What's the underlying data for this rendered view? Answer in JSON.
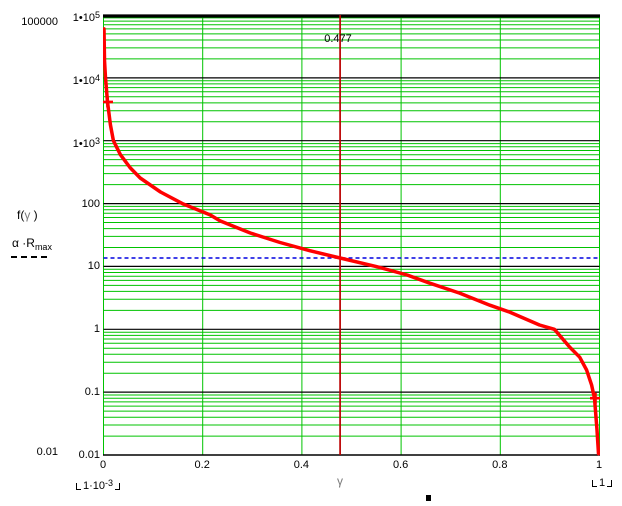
{
  "chart_data": {
    "type": "line",
    "title": "",
    "x_axis": {
      "label": "γ",
      "min": 0,
      "max": 1,
      "tick_values": [
        0,
        0.2,
        0.4,
        0.6,
        0.8,
        1
      ],
      "tick_labels": [
        "0",
        "0.2",
        "0.4",
        "0.6",
        "0.8",
        "1"
      ],
      "lower_limit": {
        "base": "1·10",
        "exp": "-3"
      },
      "upper_limit": {
        "base": "1",
        "exp": ""
      }
    },
    "y_axis": {
      "scale": "log",
      "min": 0.01,
      "max": 100000,
      "tick_values": [
        100000,
        10000,
        1000,
        100,
        10,
        1,
        0.1,
        0.01
      ],
      "tick_labels": [
        "1•10^5",
        "1•10^4",
        "1•10^3",
        "100",
        "10",
        "1",
        "0.1",
        "0.01"
      ],
      "outer_max_label": "100000",
      "outer_min_label": "0.01"
    },
    "grid": {
      "minor_color": "#00c300",
      "major_color": "#000000",
      "x_grid_color": "#00c300"
    },
    "series": [
      {
        "name": "f(γ)",
        "style": "solid",
        "color": "#ff0000",
        "stroke_width": 3.5,
        "points": [
          [
            0.001,
            60000
          ],
          [
            0.002,
            19000
          ],
          [
            0.004,
            10000
          ],
          [
            0.008,
            4150
          ],
          [
            0.014,
            1800
          ],
          [
            0.02,
            1000
          ],
          [
            0.034,
            600
          ],
          [
            0.054,
            370
          ],
          [
            0.074,
            255
          ],
          [
            0.115,
            153
          ],
          [
            0.159,
            100
          ],
          [
            0.215,
            66
          ],
          [
            0.235,
            53
          ],
          [
            0.296,
            34
          ],
          [
            0.356,
            24
          ],
          [
            0.416,
            17.8
          ],
          [
            0.477,
            13.6
          ],
          [
            0.549,
            10
          ],
          [
            0.612,
            7.3
          ],
          [
            0.658,
            5.4
          ],
          [
            0.718,
            3.76
          ],
          [
            0.779,
            2.42
          ],
          [
            0.819,
            1.88
          ],
          [
            0.879,
            1.17
          ],
          [
            0.909,
            1.0
          ],
          [
            0.94,
            0.52
          ],
          [
            0.96,
            0.36
          ],
          [
            0.974,
            0.225
          ],
          [
            0.984,
            0.13
          ],
          [
            0.99,
            0.08
          ],
          [
            0.995,
            0.025
          ],
          [
            0.998,
            0.0105
          ]
        ]
      },
      {
        "name": "α·R_max",
        "style": "dashed",
        "color": "#0000e0",
        "stroke_width": 1.6,
        "hline_value": 13.6
      }
    ],
    "vline": {
      "x": 0.477,
      "label": "0.477",
      "color": "#bb0000"
    },
    "marker_points": [
      [
        0.008,
        4150
      ],
      [
        0.992,
        0.08
      ]
    ],
    "marker_color": "#ff0000"
  },
  "legend": {
    "f": {
      "pre": "f(",
      "gamma": "γ",
      "post": " )"
    },
    "alpha": {
      "base": "α ·R",
      "sub": "max"
    }
  }
}
